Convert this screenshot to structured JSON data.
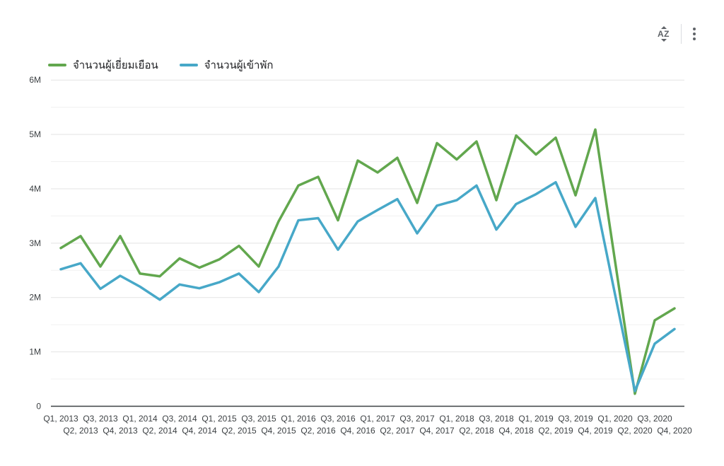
{
  "toolbar": {
    "sort_icon": "sort-az-icon",
    "sort_letters": "AZ",
    "menu_icon": "kebab-menu-icon"
  },
  "legend": {
    "items": [
      {
        "label": "จำนวนผู้เยี่ยมเยือน",
        "color": "#62a74e"
      },
      {
        "label": "จำนวนผู้เข้าพัก",
        "color": "#47a8c8"
      }
    ]
  },
  "colors": {
    "background": "#ffffff",
    "grid_major": "#e3e3e3",
    "grid_minor": "#f0f0f0",
    "axis_line": "#3c4043",
    "tick_text": "#3c4043",
    "icon_gray": "#5f6368"
  },
  "chart_data": {
    "type": "line",
    "unit": "millions",
    "categories": [
      "Q1, 2013",
      "Q2, 2013",
      "Q3, 2013",
      "Q4, 2013",
      "Q1, 2014",
      "Q2, 2014",
      "Q3, 2014",
      "Q4, 2014",
      "Q1, 2015",
      "Q2, 2015",
      "Q3, 2015",
      "Q4, 2015",
      "Q1, 2016",
      "Q2, 2016",
      "Q3, 2016",
      "Q4, 2016",
      "Q1, 2017",
      "Q2, 2017",
      "Q3, 2017",
      "Q4, 2017",
      "Q1, 2018",
      "Q2, 2018",
      "Q3, 2018",
      "Q4, 2018",
      "Q1, 2019",
      "Q2, 2019",
      "Q3, 2019",
      "Q4, 2019",
      "Q1, 2020",
      "Q2, 2020",
      "Q3, 2020",
      "Q4, 2020"
    ],
    "series": [
      {
        "name": "จำนวนผู้เยี่ยมเยือน",
        "color": "#62a74e",
        "values": [
          2.91,
          3.13,
          2.57,
          3.13,
          2.44,
          2.39,
          2.72,
          2.55,
          2.7,
          2.95,
          2.57,
          3.4,
          4.06,
          4.22,
          3.42,
          4.52,
          4.3,
          4.57,
          3.74,
          4.84,
          4.54,
          4.87,
          3.79,
          4.98,
          4.63,
          4.94,
          3.88,
          5.09,
          2.66,
          0.23,
          1.58,
          1.8
        ]
      },
      {
        "name": "จำนวนผู้เข้าพัก",
        "color": "#47a8c8",
        "values": [
          2.52,
          2.63,
          2.16,
          2.4,
          2.2,
          1.96,
          2.24,
          2.17,
          2.28,
          2.44,
          2.1,
          2.57,
          3.42,
          3.46,
          2.88,
          3.4,
          3.61,
          3.81,
          3.18,
          3.69,
          3.79,
          4.06,
          3.25,
          3.72,
          3.9,
          4.12,
          3.3,
          3.83,
          2.05,
          0.28,
          1.15,
          1.42
        ]
      }
    ],
    "title": "",
    "xlabel": "",
    "ylabel": "",
    "ylim": [
      0,
      6
    ],
    "ytick_labels": [
      "0",
      "1M",
      "2M",
      "3M",
      "4M",
      "5M",
      "6M"
    ],
    "grid": "horizontal majors at 1M, minors at 0.5M",
    "legend_position": "top-left",
    "x_label_layout": "staggered-two-rows"
  }
}
